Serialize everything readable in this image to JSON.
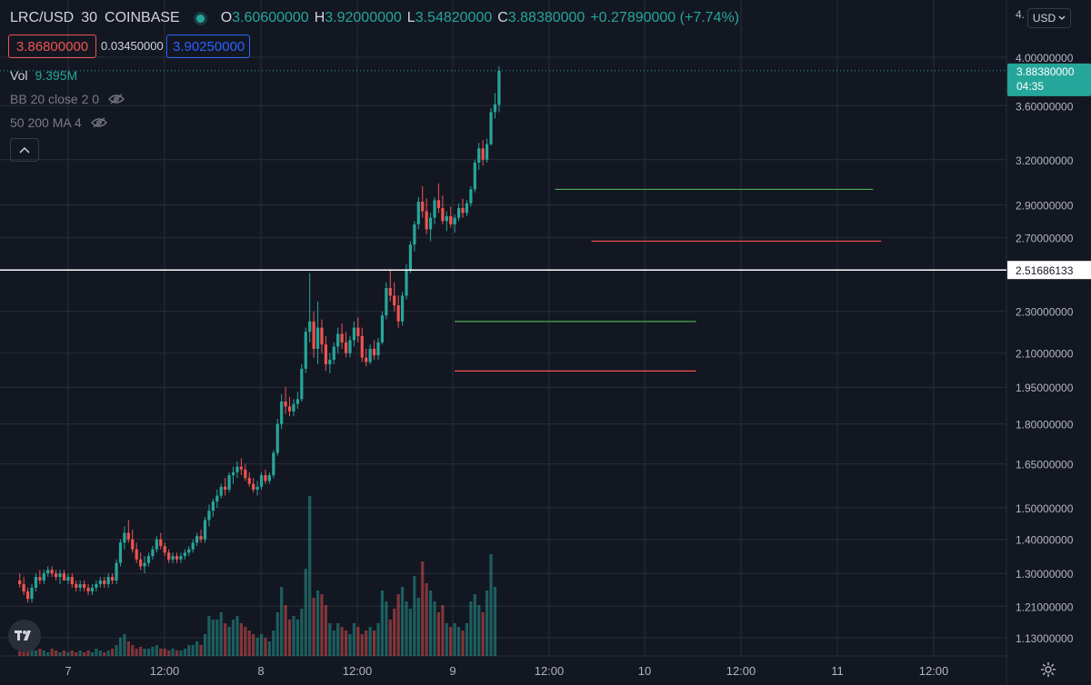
{
  "header": {
    "symbol": "LRC/USD",
    "interval": "30",
    "exchange": "COINBASE",
    "o_key": "O",
    "o_val": "3.60600000",
    "h_key": "H",
    "h_val": "3.92000000",
    "l_key": "L",
    "l_val": "3.54820000",
    "c_key": "C",
    "c_val": "3.88380000",
    "change": "+0.27890000 (+7.74%)"
  },
  "quote": {
    "bid": "3.86800000",
    "spread": "0.03450000",
    "ask": "3.90250000"
  },
  "indicators": {
    "vol_label": "Vol",
    "vol_value": "9.395M",
    "bb_label": "BB 20 close 2 0",
    "ma_label": "50 200 MA 4"
  },
  "currency": "USD",
  "icons": {
    "eye": "eye-hidden-icon",
    "collapse": "chevron-up-icon",
    "logo": "tradingview-logo-icon",
    "settings": "gear-icon",
    "currency": "chevron-down-icon"
  },
  "colors": {
    "up": "#26a69a",
    "down": "#ef5350",
    "background": "#131722",
    "grid": "#2a2e39",
    "support_line": "#ef5350",
    "resistance_line": "#4caf50",
    "crosshair": "#ffffff"
  },
  "chart_data": {
    "type": "candlestick",
    "y_scale": "log",
    "y_ticks": [
      "1.13000000",
      "1.21000000",
      "1.30000000",
      "1.40000000",
      "1.50000000",
      "1.65000000",
      "1.80000000",
      "1.95000000",
      "2.10000000",
      "2.30000000",
      "2.70000000",
      "2.90000000",
      "3.20000000",
      "3.60000000",
      "4.00000000"
    ],
    "y_top_partial_label": "4.",
    "x_ticks": [
      "7",
      "12:00",
      "8",
      "12:00",
      "9",
      "12:00",
      "10",
      "12:00",
      "11",
      "12:00"
    ],
    "last_price": "3.88380000",
    "countdown": "04:35",
    "crosshair_price": "2.51686133",
    "crosshair_price_value": 2.51686133,
    "horizontal_lines": [
      {
        "kind": "resistance",
        "price": 2.25,
        "from": "2021-11-09 00:00",
        "to": "2021-11-10 06:00"
      },
      {
        "kind": "support",
        "price": 2.02,
        "from": "2021-11-09 00:00",
        "to": "2021-11-10 06:00"
      },
      {
        "kind": "resistance",
        "price": 3.0,
        "from": "2021-11-09 12:30",
        "to": "2021-11-11 04:00"
      },
      {
        "kind": "support",
        "price": 2.68,
        "from": "2021-11-09 17:00",
        "to": "2021-11-11 05:00"
      }
    ],
    "series": [
      {
        "name": "price",
        "points": [
          [
            1.28,
            1.3,
            1.26,
            1.27
          ],
          [
            1.27,
            1.29,
            1.24,
            1.25
          ],
          [
            1.25,
            1.26,
            1.22,
            1.23
          ],
          [
            1.23,
            1.27,
            1.22,
            1.26
          ],
          [
            1.26,
            1.3,
            1.25,
            1.29
          ],
          [
            1.29,
            1.31,
            1.27,
            1.28
          ],
          [
            1.28,
            1.31,
            1.27,
            1.3
          ],
          [
            1.3,
            1.32,
            1.29,
            1.31
          ],
          [
            1.31,
            1.32,
            1.29,
            1.3
          ],
          [
            1.3,
            1.31,
            1.28,
            1.29
          ],
          [
            1.29,
            1.31,
            1.27,
            1.3
          ],
          [
            1.3,
            1.31,
            1.28,
            1.28
          ],
          [
            1.28,
            1.3,
            1.27,
            1.29
          ],
          [
            1.29,
            1.3,
            1.26,
            1.27
          ],
          [
            1.27,
            1.28,
            1.25,
            1.26
          ],
          [
            1.26,
            1.28,
            1.25,
            1.27
          ],
          [
            1.27,
            1.28,
            1.25,
            1.26
          ],
          [
            1.26,
            1.27,
            1.24,
            1.25
          ],
          [
            1.25,
            1.27,
            1.24,
            1.26
          ],
          [
            1.26,
            1.28,
            1.25,
            1.27
          ],
          [
            1.27,
            1.29,
            1.26,
            1.28
          ],
          [
            1.28,
            1.29,
            1.26,
            1.27
          ],
          [
            1.27,
            1.3,
            1.26,
            1.29
          ],
          [
            1.29,
            1.3,
            1.27,
            1.28
          ],
          [
            1.28,
            1.34,
            1.27,
            1.33
          ],
          [
            1.33,
            1.4,
            1.32,
            1.39
          ],
          [
            1.39,
            1.44,
            1.37,
            1.42
          ],
          [
            1.42,
            1.46,
            1.39,
            1.4
          ],
          [
            1.4,
            1.43,
            1.36,
            1.37
          ],
          [
            1.37,
            1.39,
            1.33,
            1.34
          ],
          [
            1.34,
            1.36,
            1.31,
            1.32
          ],
          [
            1.32,
            1.35,
            1.3,
            1.33
          ],
          [
            1.33,
            1.36,
            1.32,
            1.35
          ],
          [
            1.35,
            1.38,
            1.34,
            1.37
          ],
          [
            1.37,
            1.41,
            1.36,
            1.4
          ],
          [
            1.4,
            1.42,
            1.37,
            1.38
          ],
          [
            1.38,
            1.39,
            1.35,
            1.36
          ],
          [
            1.36,
            1.37,
            1.33,
            1.34
          ],
          [
            1.34,
            1.36,
            1.33,
            1.35
          ],
          [
            1.35,
            1.36,
            1.33,
            1.34
          ],
          [
            1.34,
            1.36,
            1.33,
            1.35
          ],
          [
            1.35,
            1.37,
            1.34,
            1.36
          ],
          [
            1.36,
            1.38,
            1.35,
            1.37
          ],
          [
            1.37,
            1.4,
            1.36,
            1.39
          ],
          [
            1.39,
            1.42,
            1.38,
            1.41
          ],
          [
            1.41,
            1.43,
            1.39,
            1.4
          ],
          [
            1.4,
            1.47,
            1.39,
            1.46
          ],
          [
            1.46,
            1.51,
            1.44,
            1.49
          ],
          [
            1.49,
            1.53,
            1.47,
            1.52
          ],
          [
            1.52,
            1.56,
            1.5,
            1.54
          ],
          [
            1.54,
            1.58,
            1.53,
            1.57
          ],
          [
            1.57,
            1.6,
            1.54,
            1.56
          ],
          [
            1.56,
            1.62,
            1.55,
            1.61
          ],
          [
            1.61,
            1.64,
            1.58,
            1.62
          ],
          [
            1.62,
            1.66,
            1.6,
            1.64
          ],
          [
            1.64,
            1.67,
            1.61,
            1.63
          ],
          [
            1.63,
            1.65,
            1.59,
            1.6
          ],
          [
            1.6,
            1.62,
            1.57,
            1.58
          ],
          [
            1.58,
            1.6,
            1.55,
            1.56
          ],
          [
            1.56,
            1.59,
            1.54,
            1.57
          ],
          [
            1.57,
            1.62,
            1.56,
            1.61
          ],
          [
            1.61,
            1.63,
            1.58,
            1.59
          ],
          [
            1.59,
            1.62,
            1.58,
            1.61
          ],
          [
            1.61,
            1.7,
            1.6,
            1.69
          ],
          [
            1.69,
            1.82,
            1.68,
            1.8
          ],
          [
            1.8,
            1.92,
            1.78,
            1.89
          ],
          [
            1.89,
            1.95,
            1.84,
            1.87
          ],
          [
            1.87,
            1.91,
            1.83,
            1.85
          ],
          [
            1.85,
            1.9,
            1.83,
            1.88
          ],
          [
            1.88,
            1.93,
            1.86,
            1.9
          ],
          [
            1.9,
            2.05,
            1.89,
            2.03
          ],
          [
            2.03,
            2.22,
            2.01,
            2.2
          ],
          [
            2.2,
            2.5,
            2.15,
            2.25
          ],
          [
            2.25,
            2.3,
            2.08,
            2.12
          ],
          [
            2.12,
            2.35,
            2.05,
            2.22
          ],
          [
            2.22,
            2.26,
            2.1,
            2.14
          ],
          [
            2.14,
            2.18,
            2.02,
            2.05
          ],
          [
            2.05,
            2.1,
            2.01,
            2.07
          ],
          [
            2.07,
            2.15,
            2.05,
            2.13
          ],
          [
            2.13,
            2.22,
            2.1,
            2.19
          ],
          [
            2.19,
            2.24,
            2.12,
            2.15
          ],
          [
            2.15,
            2.2,
            2.08,
            2.1
          ],
          [
            2.1,
            2.18,
            2.08,
            2.16
          ],
          [
            2.16,
            2.25,
            2.13,
            2.22
          ],
          [
            2.22,
            2.27,
            2.15,
            2.18
          ],
          [
            2.18,
            2.22,
            2.06,
            2.08
          ],
          [
            2.08,
            2.12,
            2.04,
            2.06
          ],
          [
            2.06,
            2.14,
            2.05,
            2.12
          ],
          [
            2.12,
            2.16,
            2.07,
            2.09
          ],
          [
            2.09,
            2.17,
            2.07,
            2.15
          ],
          [
            2.15,
            2.3,
            2.14,
            2.28
          ],
          [
            2.28,
            2.45,
            2.26,
            2.42
          ],
          [
            2.42,
            2.52,
            2.35,
            2.38
          ],
          [
            2.38,
            2.45,
            2.3,
            2.33
          ],
          [
            2.33,
            2.38,
            2.22,
            2.25
          ],
          [
            2.25,
            2.4,
            2.23,
            2.38
          ],
          [
            2.38,
            2.55,
            2.36,
            2.52
          ],
          [
            2.52,
            2.68,
            2.5,
            2.66
          ],
          [
            2.66,
            2.8,
            2.62,
            2.78
          ],
          [
            2.78,
            2.95,
            2.75,
            2.92
          ],
          [
            2.92,
            3.02,
            2.82,
            2.86
          ],
          [
            2.86,
            2.94,
            2.72,
            2.75
          ],
          [
            2.75,
            2.85,
            2.68,
            2.82
          ],
          [
            2.82,
            2.95,
            2.78,
            2.93
          ],
          [
            2.93,
            3.04,
            2.85,
            2.88
          ],
          [
            2.88,
            2.96,
            2.78,
            2.8
          ],
          [
            2.8,
            2.86,
            2.74,
            2.83
          ],
          [
            2.83,
            2.89,
            2.76,
            2.78
          ],
          [
            2.78,
            2.84,
            2.73,
            2.82
          ],
          [
            2.82,
            2.91,
            2.8,
            2.88
          ],
          [
            2.88,
            2.94,
            2.82,
            2.85
          ],
          [
            2.85,
            2.93,
            2.83,
            2.91
          ],
          [
            2.91,
            3.02,
            2.89,
            3.0
          ],
          [
            3.0,
            3.2,
            2.98,
            3.18
          ],
          [
            3.18,
            3.32,
            3.13,
            3.28
          ],
          [
            3.28,
            3.34,
            3.16,
            3.2
          ],
          [
            3.2,
            3.35,
            3.18,
            3.31
          ],
          [
            3.31,
            3.58,
            3.3,
            3.55
          ],
          [
            3.55,
            3.7,
            3.5,
            3.61
          ],
          [
            3.606,
            3.92,
            3.5482,
            3.8838
          ]
        ]
      },
      {
        "name": "volume",
        "values": [
          0.2,
          0.15,
          0.2,
          0.25,
          0.15,
          0.2,
          0.15,
          0.1,
          0.2,
          0.15,
          0.1,
          0.15,
          0.1,
          0.15,
          0.1,
          0.15,
          0.1,
          0.15,
          0.1,
          0.2,
          0.15,
          0.1,
          0.15,
          0.2,
          0.3,
          0.5,
          0.6,
          0.4,
          0.3,
          0.2,
          0.25,
          0.2,
          0.2,
          0.25,
          0.3,
          0.2,
          0.2,
          0.15,
          0.2,
          0.15,
          0.15,
          0.2,
          0.3,
          0.3,
          0.4,
          0.3,
          0.6,
          1.1,
          1.0,
          1.0,
          1.2,
          0.9,
          0.8,
          1.0,
          1.1,
          0.9,
          0.8,
          0.7,
          0.6,
          0.5,
          0.6,
          0.5,
          0.4,
          0.7,
          1.2,
          1.9,
          1.4,
          1.0,
          1.1,
          1.0,
          1.3,
          2.4,
          4.4,
          1.6,
          1.8,
          1.7,
          1.4,
          0.9,
          0.7,
          0.9,
          0.8,
          0.7,
          0.6,
          0.9,
          0.8,
          0.6,
          0.7,
          0.8,
          0.7,
          0.9,
          1.8,
          1.5,
          1.0,
          1.3,
          1.7,
          1.9,
          1.5,
          1.3,
          2.2,
          1.6,
          2.6,
          2.0,
          1.8,
          1.5,
          1.2,
          1.4,
          0.9,
          0.8,
          0.9,
          0.8,
          0.7,
          0.9,
          1.5,
          1.7,
          1.4,
          1.2,
          1.8,
          2.8,
          1.9
        ]
      }
    ]
  }
}
